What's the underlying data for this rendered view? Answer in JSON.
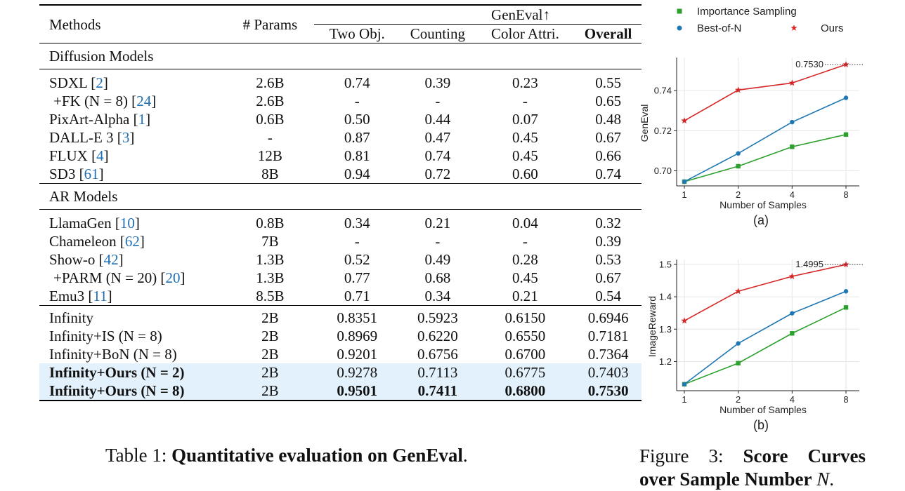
{
  "table": {
    "headers": {
      "methods": "Methods",
      "params": "# Params",
      "group": "GenEval↑",
      "two_obj": "Two Obj.",
      "counting": "Counting",
      "color_attri": "Color Attri.",
      "overall": "Overall"
    },
    "sections": [
      {
        "title": "Diffusion Models",
        "rows": [
          {
            "pre": "SDXL [",
            "ref": "2",
            "post": "]",
            "params": "2.6B",
            "v": [
              "0.74",
              "0.39",
              "0.23",
              "0.55"
            ]
          },
          {
            "pre": "+FK (N = 8) [",
            "ref": "24",
            "post": "]",
            "params": "2.6B",
            "v": [
              "-",
              "-",
              "-",
              "0.65"
            ]
          },
          {
            "pre": "PixArt-Alpha [",
            "ref": "1",
            "post": "]",
            "params": "0.6B",
            "v": [
              "0.50",
              "0.44",
              "0.07",
              "0.48"
            ]
          },
          {
            "pre": "DALL-E 3 [",
            "ref": "3",
            "post": "]",
            "params": "-",
            "v": [
              "0.87",
              "0.47",
              "0.45",
              "0.67"
            ]
          },
          {
            "pre": "FLUX [",
            "ref": "4",
            "post": "]",
            "params": "12B",
            "v": [
              "0.81",
              "0.74",
              "0.45",
              "0.66"
            ]
          },
          {
            "pre": "SD3  [",
            "ref": "61",
            "post": "]",
            "params": "8B",
            "v": [
              "0.94",
              "0.72",
              "0.60",
              "0.74"
            ]
          }
        ]
      },
      {
        "title": "AR Models",
        "rows": [
          {
            "pre": "LlamaGen [",
            "ref": "10",
            "post": "]",
            "params": "0.8B",
            "v": [
              "0.34",
              "0.21",
              "0.04",
              "0.32"
            ]
          },
          {
            "pre": "Chameleon [",
            "ref": "62",
            "post": "]",
            "params": "7B",
            "v": [
              "-",
              "-",
              "-",
              "0.39"
            ]
          },
          {
            "pre": "Show-o [",
            "ref": "42",
            "post": "]",
            "params": "1.3B",
            "v": [
              "0.52",
              "0.49",
              "0.28",
              "0.53"
            ]
          },
          {
            "pre": "+PARM (N = 20) [",
            "ref": "20",
            "post": "]",
            "params": "1.3B",
            "v": [
              "0.77",
              "0.68",
              "0.45",
              "0.67"
            ]
          },
          {
            "pre": "Emu3 [",
            "ref": "11",
            "post": "]",
            "params": "8.5B",
            "v": [
              "0.71",
              "0.34",
              "0.21",
              "0.54"
            ]
          }
        ]
      }
    ],
    "infinity_rows": [
      {
        "name": "Infinity",
        "params": "2B",
        "v": [
          "0.8351",
          "0.5923",
          "0.6150",
          "0.6946"
        ]
      },
      {
        "name": "Infinity+IS (N = 8)",
        "params": "2B",
        "v": [
          "0.8969",
          "0.6220",
          "0.6550",
          "0.7181"
        ]
      },
      {
        "name": "Infinity+BoN (N = 8)",
        "params": "2B",
        "v": [
          "0.9201",
          "0.6756",
          "0.6700",
          "0.7364"
        ]
      },
      {
        "name": "Infinity+Ours (N = 2)",
        "params": "2B",
        "v": [
          "0.9278",
          "0.7113",
          "0.6775",
          "0.7403"
        ]
      },
      {
        "name": "Infinity+Ours (N = 8)",
        "params": "2B",
        "v": [
          "0.9501",
          "0.7411",
          "0.6800",
          "0.7530"
        ]
      }
    ],
    "caption_prefix": "Table 1: ",
    "caption_bold": "Quantitative evaluation on GenEval",
    "caption_suffix": "."
  },
  "figure": {
    "caption_prefix": "Figure 3:",
    "caption_bold_line1": "Score Curves",
    "caption_bold_line2": "over Sample Number",
    "caption_var": "N",
    "caption_suffix": "."
  },
  "chart_data": [
    {
      "type": "line",
      "panel_label": "(a)",
      "xlabel": "Number of Samples",
      "ylabel": "GenEval",
      "x": [
        1,
        2,
        4,
        8
      ],
      "x_scale": "log2",
      "yticks": [
        0.7,
        0.72,
        0.74
      ],
      "ylim": [
        0.6925,
        0.7565
      ],
      "grid": true,
      "annotation": "0.7530",
      "series": [
        {
          "name": "Importance Sampling",
          "color": "#2ca02c",
          "marker": "square",
          "values": [
            0.6946,
            0.7023,
            0.712,
            0.7181
          ]
        },
        {
          "name": "Best-of-N",
          "color": "#1f77b4",
          "marker": "circle",
          "values": [
            0.6946,
            0.7087,
            0.7243,
            0.7364
          ]
        },
        {
          "name": "Ours",
          "color": "#d62728",
          "marker": "star",
          "values": [
            0.725,
            0.7403,
            0.7438,
            0.753
          ]
        }
      ]
    },
    {
      "type": "line",
      "panel_label": "(b)",
      "xlabel": "Number of Samples",
      "ylabel": "ImageReward",
      "x": [
        1,
        2,
        4,
        8
      ],
      "x_scale": "log2",
      "yticks": [
        1.2,
        1.3,
        1.4,
        1.5
      ],
      "ylim": [
        1.11,
        1.515
      ],
      "grid": true,
      "annotation": "1.4995",
      "series": [
        {
          "name": "Importance Sampling",
          "color": "#2ca02c",
          "marker": "square",
          "values": [
            1.13,
            1.195,
            1.287,
            1.367
          ]
        },
        {
          "name": "Best-of-N",
          "color": "#1f77b4",
          "marker": "circle",
          "values": [
            1.13,
            1.256,
            1.349,
            1.417
          ]
        },
        {
          "name": "Ours",
          "color": "#d62728",
          "marker": "star",
          "values": [
            1.326,
            1.417,
            1.463,
            1.4995
          ]
        }
      ]
    }
  ],
  "legend": {
    "placement": "top",
    "items": [
      {
        "label": "Importance Sampling",
        "color": "#2ca02c",
        "marker": "square"
      },
      {
        "label": "Best-of-N",
        "color": "#1f77b4",
        "marker": "circle"
      },
      {
        "label": "Ours",
        "color": "#d62728",
        "marker": "star"
      }
    ]
  }
}
